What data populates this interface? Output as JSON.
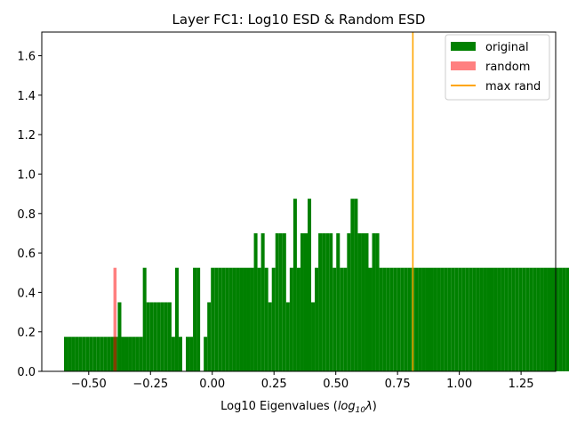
{
  "chart_data": {
    "type": "bar",
    "title": "Layer  FC1: Log10 ESD & Random ESD",
    "xlabel_main": "Log10 Eigenvalues (",
    "xlabel_math": "log",
    "xlabel_sub": "10",
    "xlabel_lambda": "λ",
    "xlabel_close": ")",
    "ylabel": "",
    "xlim": [
      -0.69,
      1.39
    ],
    "ylim": [
      0,
      1.72
    ],
    "xticks": [
      -0.5,
      -0.25,
      0.0,
      0.25,
      0.5,
      0.75,
      1.0,
      1.25
    ],
    "xtick_labels": [
      "−0.50",
      "−0.25",
      "0.00",
      "0.25",
      "0.50",
      "0.75",
      "1.00",
      "1.25"
    ],
    "yticks": [
      0.0,
      0.2,
      0.4,
      0.6,
      0.8,
      1.0,
      1.2,
      1.4,
      1.6
    ],
    "ytick_labels": [
      "0.0",
      "0.2",
      "0.4",
      "0.6",
      "0.8",
      "1.0",
      "1.2",
      "1.4",
      "1.6"
    ],
    "grid": false,
    "legend_position": "top-right",
    "series": [
      {
        "name": "original",
        "color": "#008000",
        "bin_start": -0.6,
        "bin_width": 0.0145,
        "values": [
          0.175,
          0.175,
          0.175,
          0.175,
          0.175,
          0.175,
          0.175,
          0.175,
          0.175,
          0.175,
          0.175,
          0.175,
          0.175,
          0.175,
          0.175,
          0.35,
          0.175,
          0.175,
          0.175,
          0.175,
          0.175,
          0.175,
          0.525,
          0.35,
          0.35,
          0.35,
          0.35,
          0.35,
          0.35,
          0.35,
          0.175,
          0.525,
          0.175,
          0.0,
          0.175,
          0.175,
          0.525,
          0.525,
          0.0,
          0.175,
          0.35,
          0.525,
          0.525,
          0.525,
          0.525,
          0.525,
          0.525,
          0.525,
          0.525,
          0.525,
          0.525,
          0.525,
          0.525,
          0.7,
          0.525,
          0.7,
          0.525,
          0.35,
          0.525,
          0.7,
          0.7,
          0.7,
          0.35,
          0.525,
          0.875,
          0.525,
          0.7,
          0.7,
          0.875,
          0.35,
          0.525,
          0.7,
          0.7,
          0.7,
          0.7,
          0.525,
          0.7,
          0.525,
          0.525,
          0.7,
          0.875,
          0.875,
          0.7,
          0.7,
          0.7,
          0.525,
          0.7,
          0.7,
          0.525,
          0.525,
          0.525,
          0.525,
          0.525,
          0.525,
          0.525,
          0.525,
          0.525,
          0.525,
          0.525,
          0.525,
          0.525,
          0.525,
          0.525,
          0.525,
          0.525,
          0.525,
          0.525,
          0.525,
          0.525,
          0.525,
          0.525,
          0.525,
          0.525,
          0.525,
          0.525,
          0.525,
          0.525,
          0.525,
          0.525,
          0.525,
          0.525,
          0.525,
          0.525,
          0.525,
          0.525,
          0.525,
          0.525,
          0.525,
          0.525,
          0.525,
          0.525,
          0.525,
          0.525,
          0.525,
          0.525,
          0.525,
          0.525,
          0.525,
          0.525,
          0.525,
          0.525,
          0.525,
          0.525,
          0.525,
          0.525,
          0.525,
          0.525,
          0.525,
          0.525,
          0.525,
          0.525,
          0.525,
          0.525,
          0.525,
          0.525,
          0.525,
          0.525,
          0.525,
          0.525,
          0.525,
          0.525,
          0.525,
          0.525,
          0.525,
          0.525,
          0.525,
          0.525,
          0.525,
          0.525,
          0.525,
          0.525,
          0.525,
          0.525,
          0.525,
          0.525,
          0.525,
          0.525,
          0.525,
          0.525,
          0.525,
          0.525,
          0.525,
          0.525,
          0.525,
          0.525,
          0.525,
          0.525,
          0.525,
          0.525,
          0.525,
          0.525,
          0.525,
          0.525,
          0.525,
          0.525,
          0.525,
          0.525,
          0.525,
          0.525,
          0.525,
          0.525,
          0.525,
          0.525,
          0.525,
          0.525,
          0.525,
          0.525,
          0.525,
          0.525,
          0.525,
          0.525,
          0.525,
          0.525,
          0.525,
          0.525,
          0.525,
          0.525,
          0.525,
          0.525,
          0.525,
          0.525,
          0.525,
          0.525,
          0.525,
          0.525,
          0.525,
          0.525,
          0.525,
          0.525,
          0.525,
          0.525,
          0.525,
          0.525,
          0.525,
          0.525,
          0.525,
          0.525
        ]
      },
      {
        "name": "random",
        "color": "#ff8080",
        "bin_start": -0.4,
        "bin_width": 0.0127,
        "values": [
          0.525
        ]
      }
    ],
    "max_rand": {
      "name": "max rand",
      "x": 0.812,
      "color": "#ffa500"
    }
  }
}
